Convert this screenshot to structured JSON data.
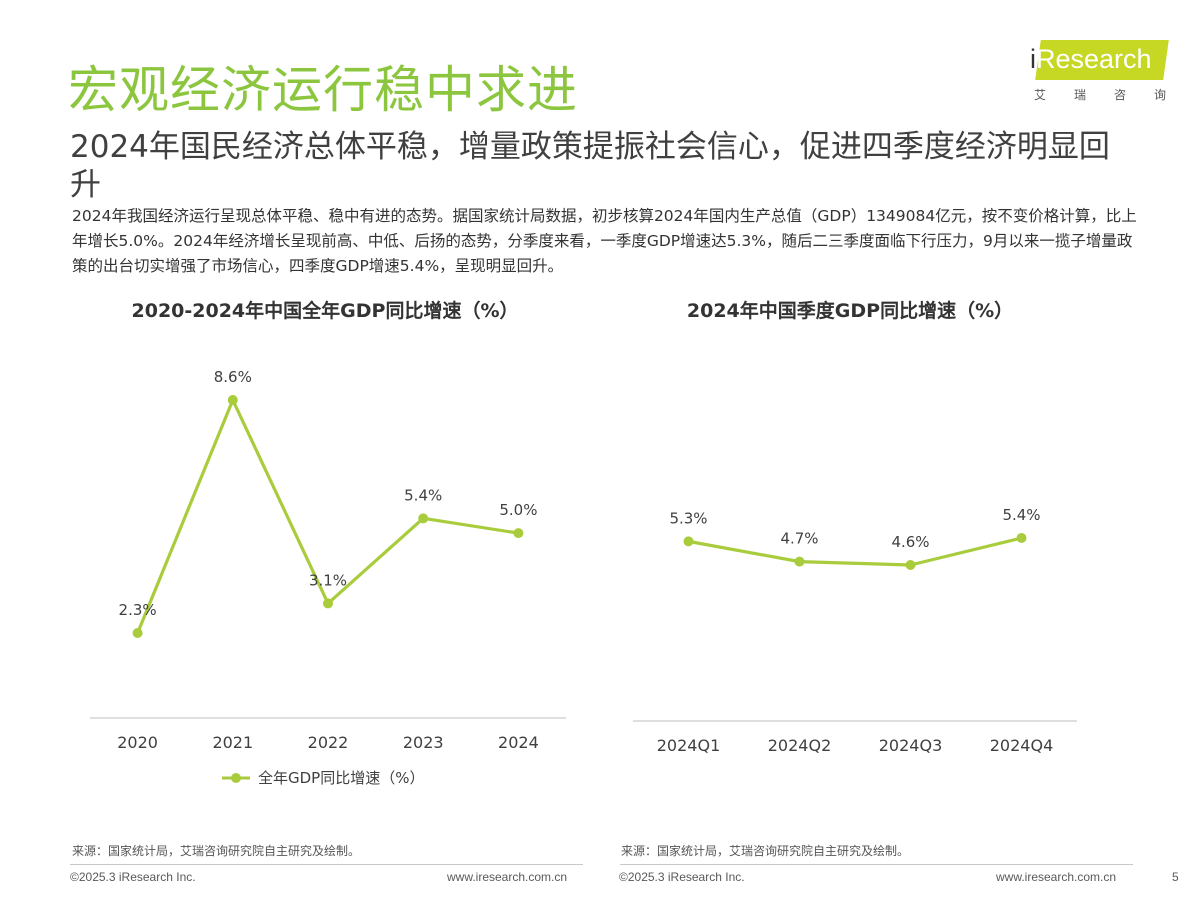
{
  "header": {
    "title": "宏观经济运行稳中求进",
    "subtitle": "2024年国民经济总体平稳，增量政策提振社会信心，促进四季度经济明显回升",
    "intro": "2024年我国经济运行呈现总体平稳、稳中有进的态势。据国家统计局数据，初步核算2024年国内生产总值（GDP）1349084亿元，按不变价格计算，比上年增长5.0%。2024年经济增长呈现前高、中低、后扬的态势，分季度来看，一季度GDP增速达5.3%，随后二三季度面临下行压力，9月以来一揽子增量政策的出台切实增强了市场信心，四季度GDP增速5.4%，呈现明显回升。"
  },
  "logo": {
    "i": "i",
    "word": "Research",
    "cn": [
      "艾",
      "瑞",
      "咨",
      "询"
    ]
  },
  "colors": {
    "title_green": "#8cc63f",
    "line": "#a9cc3c",
    "axis": "#bfbfbf",
    "logo_badge": "#c6d824"
  },
  "chart_data": [
    {
      "type": "line",
      "title": "2020-2024年中国全年GDP同比增速（%）",
      "categories": [
        "2020",
        "2021",
        "2022",
        "2023",
        "2024"
      ],
      "series": [
        {
          "name": "全年GDP同比增速（%）",
          "values": [
            2.3,
            8.6,
            3.1,
            5.4,
            5.0
          ]
        }
      ],
      "data_labels": [
        "2.3%",
        "8.6%",
        "3.1%",
        "5.4%",
        "5.0%"
      ],
      "legend_position": "bottom"
    },
    {
      "type": "line",
      "title": "2024年中国季度GDP同比增速（%）",
      "categories": [
        "2024Q1",
        "2024Q2",
        "2024Q3",
        "2024Q4"
      ],
      "series": [
        {
          "values": [
            5.3,
            4.7,
            4.6,
            5.4
          ]
        }
      ],
      "data_labels": [
        "5.3%",
        "4.7%",
        "4.6%",
        "5.4%"
      ]
    }
  ],
  "footer": {
    "source": "来源：国家统计局，艾瑞咨询研究院自主研究及绘制。",
    "copyright": "©2025.3 iResearch Inc.",
    "url": "www.iresearch.com.cn",
    "page": "5"
  }
}
